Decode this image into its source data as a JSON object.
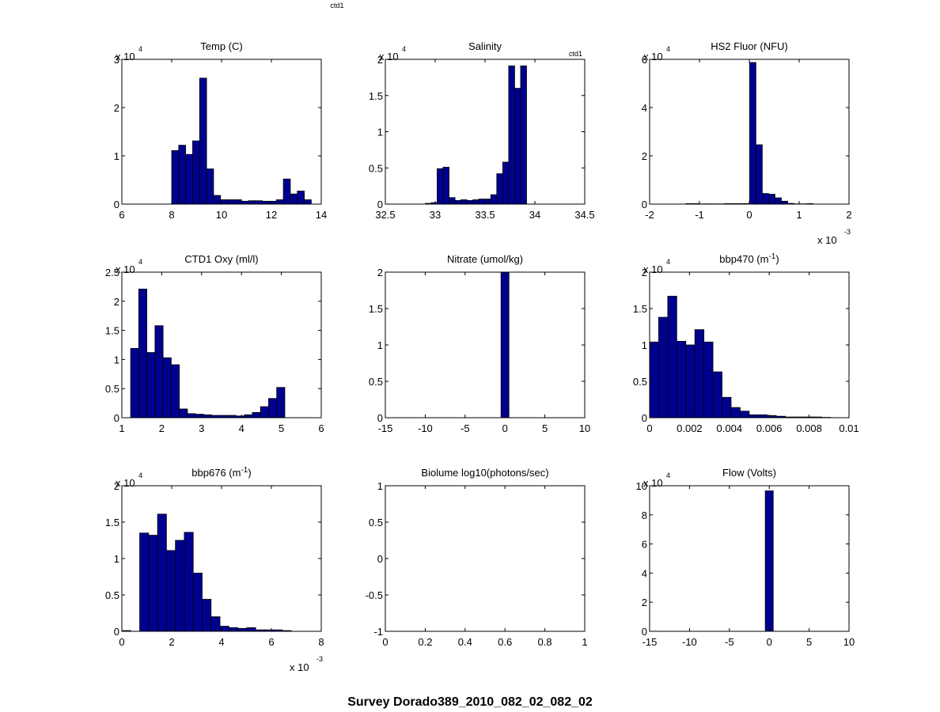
{
  "figure": {
    "suptitle": "Survey Dorado389_2010_082_02_082_02",
    "top_label": "ctd1"
  },
  "colors": {
    "bar_fill": "#00008f",
    "bar_edge": "#000000",
    "axes": "#000000",
    "background": "#ffffff"
  },
  "chart_data": [
    {
      "type": "bar",
      "title": "Temp (C)",
      "corner_label": "",
      "xlim": [
        6,
        14
      ],
      "xticks": [
        "6",
        "8",
        "10",
        "12",
        "14"
      ],
      "xtick_values": [
        6,
        8,
        10,
        12,
        14
      ],
      "ylim": [
        0,
        3
      ],
      "yticks": [
        "0",
        "1",
        "2",
        "3"
      ],
      "ytick_values": [
        0,
        1,
        2,
        3
      ],
      "ymult": "x 10",
      "ymult_exp": "4",
      "xmult": "",
      "xmult_exp": "",
      "bin_start": 8.0,
      "bin_width": 0.28,
      "values": [
        1.11,
        1.22,
        1.03,
        1.31,
        2.61,
        0.73,
        0.18,
        0.09,
        0.09,
        0.09,
        0.06,
        0.07,
        0.07,
        0.06,
        0.06,
        0.09,
        0.52,
        0.21,
        0.27,
        0.09
      ]
    },
    {
      "type": "bar",
      "title": "Salinity",
      "corner_label": "ctd1",
      "xlim": [
        32.5,
        34.5
      ],
      "xticks": [
        "32.5",
        "33",
        "33.5",
        "34",
        "34.5"
      ],
      "xtick_values": [
        32.5,
        33,
        33.5,
        34,
        34.5
      ],
      "ylim": [
        0,
        2
      ],
      "yticks": [
        "0",
        "0.5",
        "1",
        "1.5",
        "2"
      ],
      "ytick_values": [
        0,
        0.5,
        1,
        1.5,
        2
      ],
      "ymult": "x 10",
      "ymult_exp": "4",
      "xmult": "",
      "xmult_exp": "",
      "bin_start": 32.9,
      "bin_width": 0.0598,
      "values": [
        0.01,
        0.02,
        0.49,
        0.51,
        0.09,
        0.05,
        0.06,
        0.05,
        0.06,
        0.07,
        0.07,
        0.13,
        0.42,
        0.58,
        1.91,
        1.6,
        1.91
      ]
    },
    {
      "type": "bar",
      "title": "HS2 Fluor (NFU)",
      "corner_label": "",
      "xlim": [
        -2,
        2
      ],
      "xticks": [
        "-2",
        "-1",
        "0",
        "1",
        "2"
      ],
      "xtick_values": [
        -2,
        -1,
        0,
        1,
        2
      ],
      "ylim": [
        0,
        6
      ],
      "yticks": [
        "0",
        "2",
        "4",
        "6"
      ],
      "ytick_values": [
        0,
        2,
        4,
        6
      ],
      "ymult": "x 10",
      "ymult_exp": "4",
      "xmult": "x 10",
      "xmult_exp": "-3",
      "bin_start": -1.27,
      "bin_width": 0.1275,
      "values": [
        0.02,
        0.02,
        0.01,
        0.01,
        0.01,
        0.01,
        0.02,
        0.02,
        0.02,
        0.02,
        5.87,
        2.46,
        0.44,
        0.41,
        0.26,
        0.12,
        0.03,
        0.01,
        0.01,
        0.02
      ]
    },
    {
      "type": "bar",
      "title": "CTD1 Oxy (ml/l)",
      "corner_label": "",
      "xlim": [
        1,
        6
      ],
      "xticks": [
        "1",
        "2",
        "3",
        "4",
        "5",
        "6"
      ],
      "xtick_values": [
        1,
        2,
        3,
        4,
        5,
        6
      ],
      "ylim": [
        0,
        2.5
      ],
      "yticks": [
        "0",
        "0.5",
        "1",
        "1.5",
        "2",
        "2.5"
      ],
      "ytick_values": [
        0,
        0.5,
        1,
        1.5,
        2,
        2.5
      ],
      "ymult": "x 10",
      "ymult_exp": "4",
      "xmult": "",
      "xmult_exp": "",
      "bin_start": 1.22,
      "bin_width": 0.2035,
      "values": [
        1.19,
        2.21,
        1.12,
        1.58,
        1.03,
        0.91,
        0.15,
        0.07,
        0.06,
        0.05,
        0.04,
        0.04,
        0.04,
        0.03,
        0.05,
        0.09,
        0.19,
        0.33,
        0.52
      ]
    },
    {
      "type": "bar",
      "title": "Nitrate (umol/kg)",
      "corner_label": "",
      "xlim": [
        -15,
        10
      ],
      "xticks": [
        "-15",
        "-10",
        "-5",
        "0",
        "5",
        "10"
      ],
      "xtick_values": [
        -15,
        -10,
        -5,
        0,
        5,
        10
      ],
      "ylim": [
        0,
        2
      ],
      "yticks": [
        "0",
        "0.5",
        "1",
        "1.5",
        "2"
      ],
      "ytick_values": [
        0,
        0.5,
        1,
        1.5,
        2
      ],
      "ymult": "",
      "ymult_exp": "",
      "xmult": "",
      "xmult_exp": "",
      "bin_start": -0.5,
      "bin_width": 1.0,
      "values": [
        2.0
      ]
    },
    {
      "type": "bar",
      "title": "bbp470 (m",
      "title_sup": "-1",
      "title_end": ")",
      "corner_label": "",
      "xlim": [
        0,
        0.01
      ],
      "xticks": [
        "0",
        "0.002",
        "0.004",
        "0.006",
        "0.008",
        "0.01"
      ],
      "xtick_values": [
        0,
        0.002,
        0.004,
        0.006,
        0.008,
        0.01
      ],
      "ylim": [
        0,
        2
      ],
      "yticks": [
        "0",
        "0.5",
        "1",
        "1.5",
        "2"
      ],
      "ytick_values": [
        0,
        0.5,
        1,
        1.5,
        2
      ],
      "ymult": "x 10",
      "ymult_exp": "4",
      "xmult": "",
      "xmult_exp": "",
      "bin_start": 0.0,
      "bin_width": 0.000454,
      "values": [
        1.04,
        1.38,
        1.67,
        1.05,
        1.0,
        1.21,
        1.04,
        0.63,
        0.28,
        0.14,
        0.09,
        0.04,
        0.04,
        0.03,
        0.02,
        0.01,
        0.01,
        0.01,
        0.01,
        0.005
      ]
    },
    {
      "type": "bar",
      "title": "bbp676 (m",
      "title_sup": "-1",
      "title_end": ")",
      "corner_label": "",
      "xlim": [
        0,
        8
      ],
      "xticks": [
        "0",
        "2",
        "4",
        "6",
        "8"
      ],
      "xtick_values": [
        0,
        2,
        4,
        6,
        8
      ],
      "ylim": [
        0,
        2
      ],
      "yticks": [
        "0",
        "0.5",
        "1",
        "1.5",
        "2"
      ],
      "ytick_values": [
        0,
        0.5,
        1,
        1.5,
        2
      ],
      "ymult": "x 10",
      "ymult_exp": "4",
      "xmult": "x 10",
      "xmult_exp": "-3",
      "bin_start": 0.0,
      "bin_width": 0.358,
      "values": [
        0.01,
        0.0,
        1.35,
        1.32,
        1.61,
        1.11,
        1.25,
        1.36,
        0.8,
        0.44,
        0.2,
        0.07,
        0.05,
        0.04,
        0.05,
        0.02,
        0.02,
        0.02,
        0.01
      ]
    },
    {
      "type": "bar",
      "title": "Biolume log10(photons/sec)",
      "corner_label": "",
      "xlim": [
        0,
        1
      ],
      "xticks": [
        "0",
        "0.2",
        "0.4",
        "0.6",
        "0.8",
        "1"
      ],
      "xtick_values": [
        0,
        0.2,
        0.4,
        0.6,
        0.8,
        1
      ],
      "ylim": [
        -1,
        1
      ],
      "yticks": [
        "-1",
        "-0.5",
        "0",
        "0.5",
        "1"
      ],
      "ytick_values": [
        -1,
        -0.5,
        0,
        0.5,
        1
      ],
      "ymult": "",
      "ymult_exp": "",
      "xmult": "",
      "xmult_exp": "",
      "bin_start": 0,
      "bin_width": 0,
      "values": []
    },
    {
      "type": "bar",
      "title": "Flow (Volts)",
      "corner_label": "",
      "xlim": [
        -15,
        10
      ],
      "xticks": [
        "-15",
        "-10",
        "-5",
        "0",
        "5",
        "10"
      ],
      "xtick_values": [
        -15,
        -10,
        -5,
        0,
        5,
        10
      ],
      "ylim": [
        0,
        10
      ],
      "yticks": [
        "0",
        "2",
        "4",
        "6",
        "8",
        "10"
      ],
      "ytick_values": [
        0,
        2,
        4,
        6,
        8,
        10
      ],
      "ymult": "x 10",
      "ymult_exp": "4",
      "xmult": "",
      "xmult_exp": "",
      "bin_start": -0.5,
      "bin_width": 1.0,
      "values": [
        9.65
      ]
    }
  ]
}
